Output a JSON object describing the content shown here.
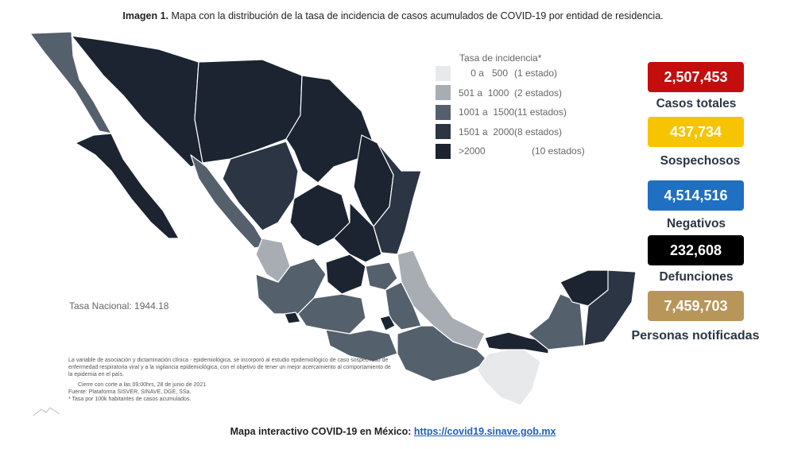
{
  "caption": {
    "bold": "Imagen 1.",
    "text": " Mapa con la distribución de la tasa de incidencia de casos acumulados de COVID-19 por entidad de residencia."
  },
  "legend": {
    "title": "Tasa de incidencia*",
    "items": [
      {
        "range": "0 a   500",
        "count": "(1 estado)",
        "color": "#e8e9eb"
      },
      {
        "range": "501 a  1000",
        "count": "(2 estados)",
        "color": "#a8adb3"
      },
      {
        "range": "1001 a  1500",
        "count": "(11 estados)",
        "color": "#55606d"
      },
      {
        "range": "1501 a  2000",
        "count": "(8 estados)",
        "color": "#2b3544"
      },
      {
        "range": ">2000",
        "count": "(10 estados)",
        "color": "#1c2431"
      }
    ]
  },
  "tasa_nacional": "Tasa Nacional: 1944.18",
  "notes": {
    "p1": "La variable de asociación y dictaminación clínica - epidemiológica, se incorporó al estudio epidemiológico de caso sospechoso de enfermedad respiratoria viral y a la vigilancia epidemiológica, con el objetivo de tener un mejor acercamiento al comportamiento de la epidemia en el país.",
    "cierre": "Cierre con corte a las 09:00hrs, 28 de junio de 2021",
    "fuente": "Fuente: Plataforma SISVER, SINAVE, DGE, SSa.",
    "tasa": "* Tasa por 100k habitantes de casos acumulados."
  },
  "stats": [
    {
      "value": "2,507,453",
      "label": "Casos totales",
      "color": "#c40d0d"
    },
    {
      "value": "437,734",
      "label": "Sospechosos",
      "color": "#f6c400"
    },
    {
      "value": "4,514,516",
      "label": "Negativos",
      "color": "#1f6fc2"
    },
    {
      "value": "232,608",
      "label": "Defunciones",
      "color": "#000000"
    },
    {
      "value": "7,459,703",
      "label": "Personas notificadas",
      "color": "#b8965a"
    }
  ],
  "footer": {
    "text": "Mapa interactivo COVID-19 en México: ",
    "link": "https://covid19.sinave.gob.mx"
  }
}
